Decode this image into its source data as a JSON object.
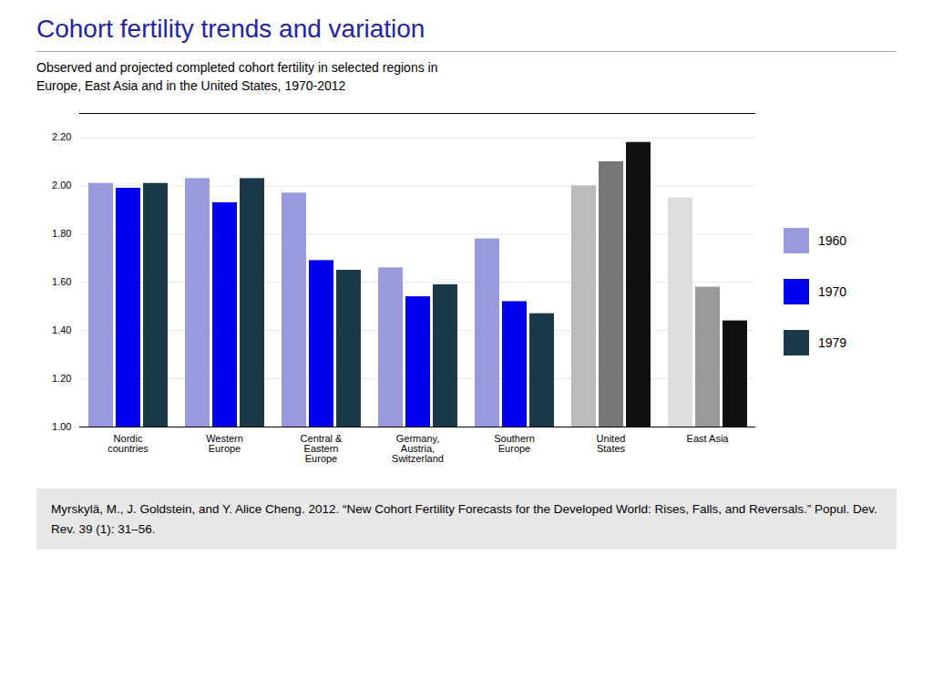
{
  "chart_data": {
    "type": "bar",
    "title": "Cohort fertility trends and variation",
    "subtitle": "Observed and projected completed cohort fertility in selected regions in\nEurope, East Asia and in the United States, 1970-2012",
    "categories": [
      "Nordic\ncountries",
      "Western\nEurope",
      "Central &\nEastern\nEurope",
      "Germany,\nAustria,\nSwitzerland",
      "Southern\nEurope",
      "United\nStates",
      "East Asia"
    ],
    "series": [
      {
        "name": "1960",
        "color": "#9999dd",
        "colors": [
          "#9999dd",
          "#9999dd",
          "#9999dd",
          "#9999dd",
          "#9999dd",
          "#bbbbbb",
          "#dddddd"
        ],
        "values": [
          2.01,
          2.03,
          1.97,
          1.66,
          1.78,
          2.0,
          1.95
        ]
      },
      {
        "name": "1970",
        "color": "#0000ee",
        "colors": [
          "#0000ee",
          "#0000ee",
          "#0000ee",
          "#0000ee",
          "#0000ee",
          "#777777",
          "#999999"
        ],
        "values": [
          1.99,
          1.93,
          1.69,
          1.54,
          1.52,
          2.1,
          1.58
        ]
      },
      {
        "name": "1979",
        "color": "#1a3a4a",
        "colors": [
          "#1a3a4a",
          "#1a3a4a",
          "#1a3a4a",
          "#1a3a4a",
          "#1a3a4a",
          "#111111",
          "#111111"
        ],
        "values": [
          2.01,
          2.03,
          1.65,
          1.59,
          1.47,
          2.18,
          1.44
        ]
      }
    ],
    "ylim": [
      1.0,
      2.3
    ],
    "yticks": [
      {
        "value": 1.0,
        "label": "1.00"
      },
      {
        "value": 1.2,
        "label": "1.20"
      },
      {
        "value": 1.4,
        "label": "1.40"
      },
      {
        "value": 1.6,
        "label": "1.60"
      },
      {
        "value": 1.8,
        "label": "1.80"
      },
      {
        "value": 2.0,
        "label": "2.00"
      },
      {
        "value": 2.2,
        "label": "2.20"
      }
    ],
    "grid": true,
    "legend": "right",
    "title_color": "#2222aa",
    "annotations": [
      "Myrskylä, M., J. Goldstein, and Y. Alice Cheng. 2012. “New Cohort Fertility Forecasts for the Developed World: Rises, Falls, and Reversals.” Popul. Dev. Rev. 39 (1): 31–56."
    ]
  }
}
